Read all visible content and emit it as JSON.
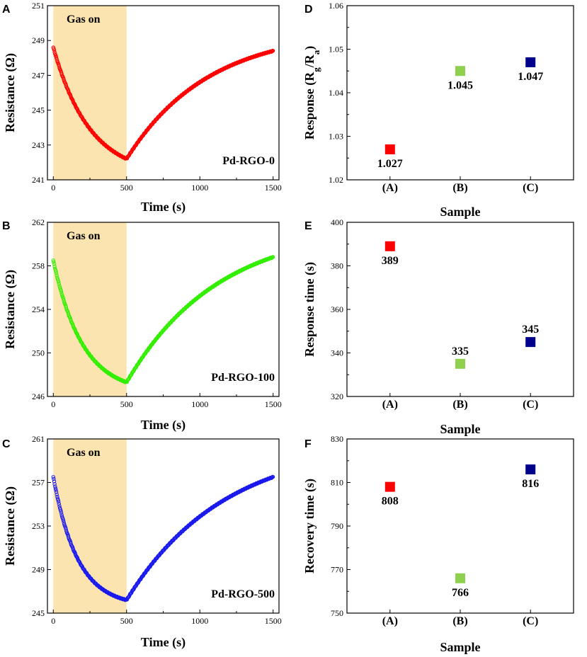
{
  "panels": [
    {
      "letter": "A",
      "type": "line",
      "annotation": "Gas on",
      "sample": "Pd-RGO-0",
      "xlabel": "Time (s)",
      "ylabel": "Resistance (Ω)",
      "xlim": [
        -40,
        1540
      ],
      "ylim": [
        241,
        251
      ],
      "xticks": [
        0,
        500,
        1000,
        1500
      ],
      "yticks": [
        241,
        243,
        245,
        247,
        249,
        251
      ],
      "gas_on_range": [
        0,
        500
      ],
      "color": "#ff0000",
      "curve": {
        "start": 248.6,
        "min": 242.2,
        "end": 248.4,
        "k_down": 2.0,
        "k_up": 1.8
      }
    },
    {
      "letter": "B",
      "type": "line",
      "annotation": "Gas on",
      "sample": "Pd-RGO-100",
      "xlabel": "Time (s)",
      "ylabel": "Resistance (Ω)",
      "xlim": [
        -40,
        1540
      ],
      "ylim": [
        246,
        262
      ],
      "xticks": [
        0,
        500,
        1000,
        1500
      ],
      "yticks": [
        246,
        250,
        254,
        258,
        262
      ],
      "gas_on_range": [
        0,
        500
      ],
      "color": "#33ee00",
      "curve": {
        "start": 258.5,
        "min": 247.3,
        "end": 258.8,
        "k_down": 2.5,
        "k_up": 1.6
      }
    },
    {
      "letter": "C",
      "type": "line",
      "annotation": "Gas on",
      "sample": "Pd-RGO-500",
      "xlabel": "Time (s)",
      "ylabel": "Resistance (Ω)",
      "xlim": [
        -40,
        1540
      ],
      "ylim": [
        245,
        261
      ],
      "xticks": [
        0,
        500,
        1000,
        1500
      ],
      "yticks": [
        245,
        249,
        253,
        257,
        261
      ],
      "gas_on_range": [
        0,
        500
      ],
      "color": "#1a1aee",
      "curve": {
        "start": 257.5,
        "min": 246.2,
        "end": 257.5,
        "k_down": 3.0,
        "k_up": 1.5
      }
    }
  ],
  "scatter_panels": [
    {
      "letter": "D",
      "type": "scatter",
      "xlabel": "Sample",
      "ylabel_main": "Response (R",
      "ylabel_sub1": "g",
      "ylabel_mid": "/R",
      "ylabel_sub2": "a",
      "ylabel_end": ")",
      "categories": [
        "(A)",
        "(B)",
        "(C)"
      ],
      "ylim": [
        1.02,
        1.06
      ],
      "yticks": [
        "1.02",
        "1.03",
        "1.04",
        "1.05",
        "1.06"
      ],
      "values": [
        1.027,
        1.045,
        1.047
      ],
      "labels": [
        "1.027",
        "1.045",
        "1.047"
      ],
      "label_pos": [
        "below",
        "below",
        "below"
      ]
    },
    {
      "letter": "E",
      "type": "scatter",
      "xlabel": "Sample",
      "ylabel": "Response time (s)",
      "categories": [
        "(A)",
        "(B)",
        "(C)"
      ],
      "ylim": [
        320,
        400
      ],
      "yticks": [
        "320",
        "340",
        "360",
        "380",
        "400"
      ],
      "values": [
        389,
        335,
        345
      ],
      "labels": [
        "389",
        "335",
        "345"
      ],
      "label_pos": [
        "below",
        "above",
        "above"
      ]
    },
    {
      "letter": "F",
      "type": "scatter",
      "xlabel": "Sample",
      "ylabel": "Recovery time (s)",
      "categories": [
        "(A)",
        "(B)",
        "(C)"
      ],
      "ylim": [
        750,
        830
      ],
      "yticks": [
        "750",
        "770",
        "790",
        "810",
        "830"
      ],
      "values": [
        808,
        766,
        816
      ],
      "labels": [
        "808",
        "766",
        "816"
      ],
      "label_pos": [
        "below",
        "below",
        "below"
      ]
    }
  ],
  "marker_colors": [
    "#ff0000",
    "#8fd14f",
    "#00008b"
  ],
  "gas_on_color": "#fce4b0",
  "chart_data": [
    {
      "type": "line",
      "title": "A",
      "series": [
        {
          "name": "Pd-RGO-0",
          "x": [
            0,
            100,
            200,
            300,
            400,
            500,
            750,
            1000,
            1250,
            1500
          ],
          "values": [
            248.6,
            246.0,
            244.4,
            243.4,
            242.7,
            242.2,
            245.6,
            247.1,
            247.9,
            248.4
          ]
        }
      ],
      "xlabel": "Time (s)",
      "ylabel": "Resistance (Ω)",
      "ylim": [
        241,
        251
      ]
    },
    {
      "type": "line",
      "title": "B",
      "series": [
        {
          "name": "Pd-RGO-100",
          "x": [
            0,
            100,
            200,
            300,
            400,
            500,
            750,
            1000,
            1250,
            1500
          ],
          "values": [
            258.5,
            253.6,
            250.6,
            248.9,
            247.9,
            247.3,
            251.9,
            254.9,
            257.0,
            258.8
          ]
        }
      ],
      "xlabel": "Time (s)",
      "ylabel": "Resistance (Ω)",
      "ylim": [
        246,
        262
      ]
    },
    {
      "type": "line",
      "title": "C",
      "series": [
        {
          "name": "Pd-RGO-500",
          "x": [
            0,
            100,
            200,
            300,
            400,
            500,
            750,
            1000,
            1250,
            1500
          ],
          "values": [
            257.5,
            252.0,
            249.2,
            247.7,
            246.8,
            246.2,
            250.6,
            253.6,
            255.8,
            257.5
          ]
        }
      ],
      "xlabel": "Time (s)",
      "ylabel": "Resistance (Ω)",
      "ylim": [
        245,
        261
      ]
    },
    {
      "type": "scatter",
      "title": "D",
      "categories": [
        "(A)",
        "(B)",
        "(C)"
      ],
      "values": [
        1.027,
        1.045,
        1.047
      ],
      "xlabel": "Sample",
      "ylabel": "Response (Rg/Ra)",
      "ylim": [
        1.02,
        1.06
      ]
    },
    {
      "type": "scatter",
      "title": "E",
      "categories": [
        "(A)",
        "(B)",
        "(C)"
      ],
      "values": [
        389,
        335,
        345
      ],
      "xlabel": "Sample",
      "ylabel": "Response time (s)",
      "ylim": [
        320,
        400
      ]
    },
    {
      "type": "scatter",
      "title": "F",
      "categories": [
        "(A)",
        "(B)",
        "(C)"
      ],
      "values": [
        808,
        766,
        816
      ],
      "xlabel": "Sample",
      "ylabel": "Recovery time (s)",
      "ylim": [
        750,
        830
      ]
    }
  ]
}
